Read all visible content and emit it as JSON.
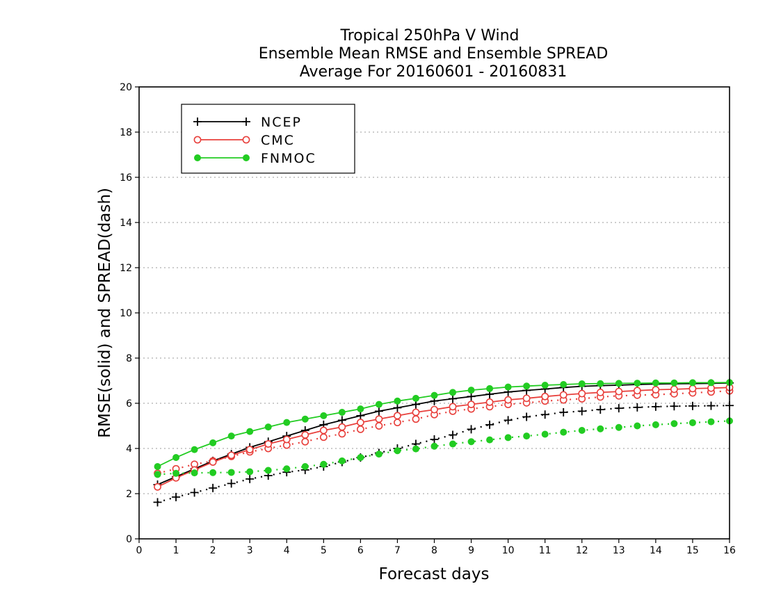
{
  "chart_data": {
    "type": "line",
    "title": [
      "Tropical 250hPa V Wind",
      "Ensemble Mean RMSE and Ensemble SPREAD",
      "Average For 20160601 - 20160831"
    ],
    "xlabel": "Forecast days",
    "ylabel": "RMSE(solid) and SPREAD(dash)",
    "xlim": [
      0,
      16
    ],
    "ylim": [
      0,
      20
    ],
    "xticks": [
      0,
      1,
      2,
      3,
      4,
      5,
      6,
      7,
      8,
      9,
      10,
      11,
      12,
      13,
      14,
      15,
      16
    ],
    "yticks": [
      0,
      2,
      4,
      6,
      8,
      10,
      12,
      14,
      16,
      18,
      20
    ],
    "grid": "horizontal dotted",
    "legend_position": "top-left",
    "x": [
      0.5,
      1,
      1.5,
      2,
      2.5,
      3,
      3.5,
      4,
      4.5,
      5,
      5.5,
      6,
      6.5,
      7,
      7.5,
      8,
      8.5,
      9,
      9.5,
      10,
      10.5,
      11,
      11.5,
      12,
      12.5,
      13,
      13.5,
      14,
      14.5,
      15,
      15.5,
      16
    ],
    "series": [
      {
        "name": "NCEP",
        "color": "#000000",
        "marker": "plus",
        "rmse": [
          2.4,
          2.75,
          3.1,
          3.45,
          3.75,
          4.05,
          4.3,
          4.55,
          4.8,
          5.05,
          5.25,
          5.45,
          5.65,
          5.8,
          5.95,
          6.1,
          6.2,
          6.3,
          6.4,
          6.5,
          6.57,
          6.63,
          6.7,
          6.75,
          6.78,
          6.8,
          6.83,
          6.85,
          6.86,
          6.87,
          6.88,
          6.9
        ],
        "spread": [
          1.62,
          1.85,
          2.05,
          2.25,
          2.45,
          2.65,
          2.8,
          2.95,
          3.05,
          3.2,
          3.4,
          3.6,
          3.8,
          4.0,
          4.2,
          4.4,
          4.6,
          4.85,
          5.05,
          5.25,
          5.4,
          5.5,
          5.6,
          5.65,
          5.72,
          5.78,
          5.82,
          5.85,
          5.87,
          5.88,
          5.89,
          5.9
        ]
      },
      {
        "name": "CMC",
        "color": "#e8403c",
        "marker": "open-circle",
        "rmse": [
          2.3,
          2.7,
          3.05,
          3.4,
          3.7,
          3.95,
          4.2,
          4.4,
          4.6,
          4.8,
          4.95,
          5.15,
          5.3,
          5.45,
          5.6,
          5.72,
          5.85,
          5.95,
          6.05,
          6.15,
          6.22,
          6.3,
          6.37,
          6.43,
          6.48,
          6.52,
          6.56,
          6.6,
          6.62,
          6.65,
          6.67,
          6.7
        ],
        "spread": [
          2.9,
          3.1,
          3.3,
          3.45,
          3.65,
          3.85,
          4.0,
          4.15,
          4.3,
          4.5,
          4.65,
          4.85,
          5.0,
          5.15,
          5.3,
          5.5,
          5.65,
          5.75,
          5.85,
          5.95,
          6.02,
          6.1,
          6.15,
          6.2,
          6.28,
          6.33,
          6.36,
          6.38,
          6.42,
          6.46,
          6.5,
          6.55
        ]
      },
      {
        "name": "FNMOC",
        "color": "#22cc22",
        "marker": "filled-circle",
        "rmse": [
          3.2,
          3.6,
          3.95,
          4.25,
          4.55,
          4.75,
          4.95,
          5.15,
          5.3,
          5.45,
          5.6,
          5.75,
          5.95,
          6.1,
          6.22,
          6.35,
          6.48,
          6.58,
          6.65,
          6.72,
          6.76,
          6.8,
          6.83,
          6.86,
          6.87,
          6.88,
          6.89,
          6.9,
          6.9,
          6.91,
          6.91,
          6.92
        ],
        "spread": [
          2.85,
          2.9,
          2.92,
          2.93,
          2.94,
          2.97,
          3.03,
          3.1,
          3.2,
          3.3,
          3.45,
          3.6,
          3.75,
          3.9,
          3.98,
          4.1,
          4.2,
          4.3,
          4.38,
          4.48,
          4.55,
          4.63,
          4.72,
          4.8,
          4.87,
          4.93,
          5.0,
          5.05,
          5.1,
          5.14,
          5.18,
          5.22
        ]
      }
    ]
  }
}
